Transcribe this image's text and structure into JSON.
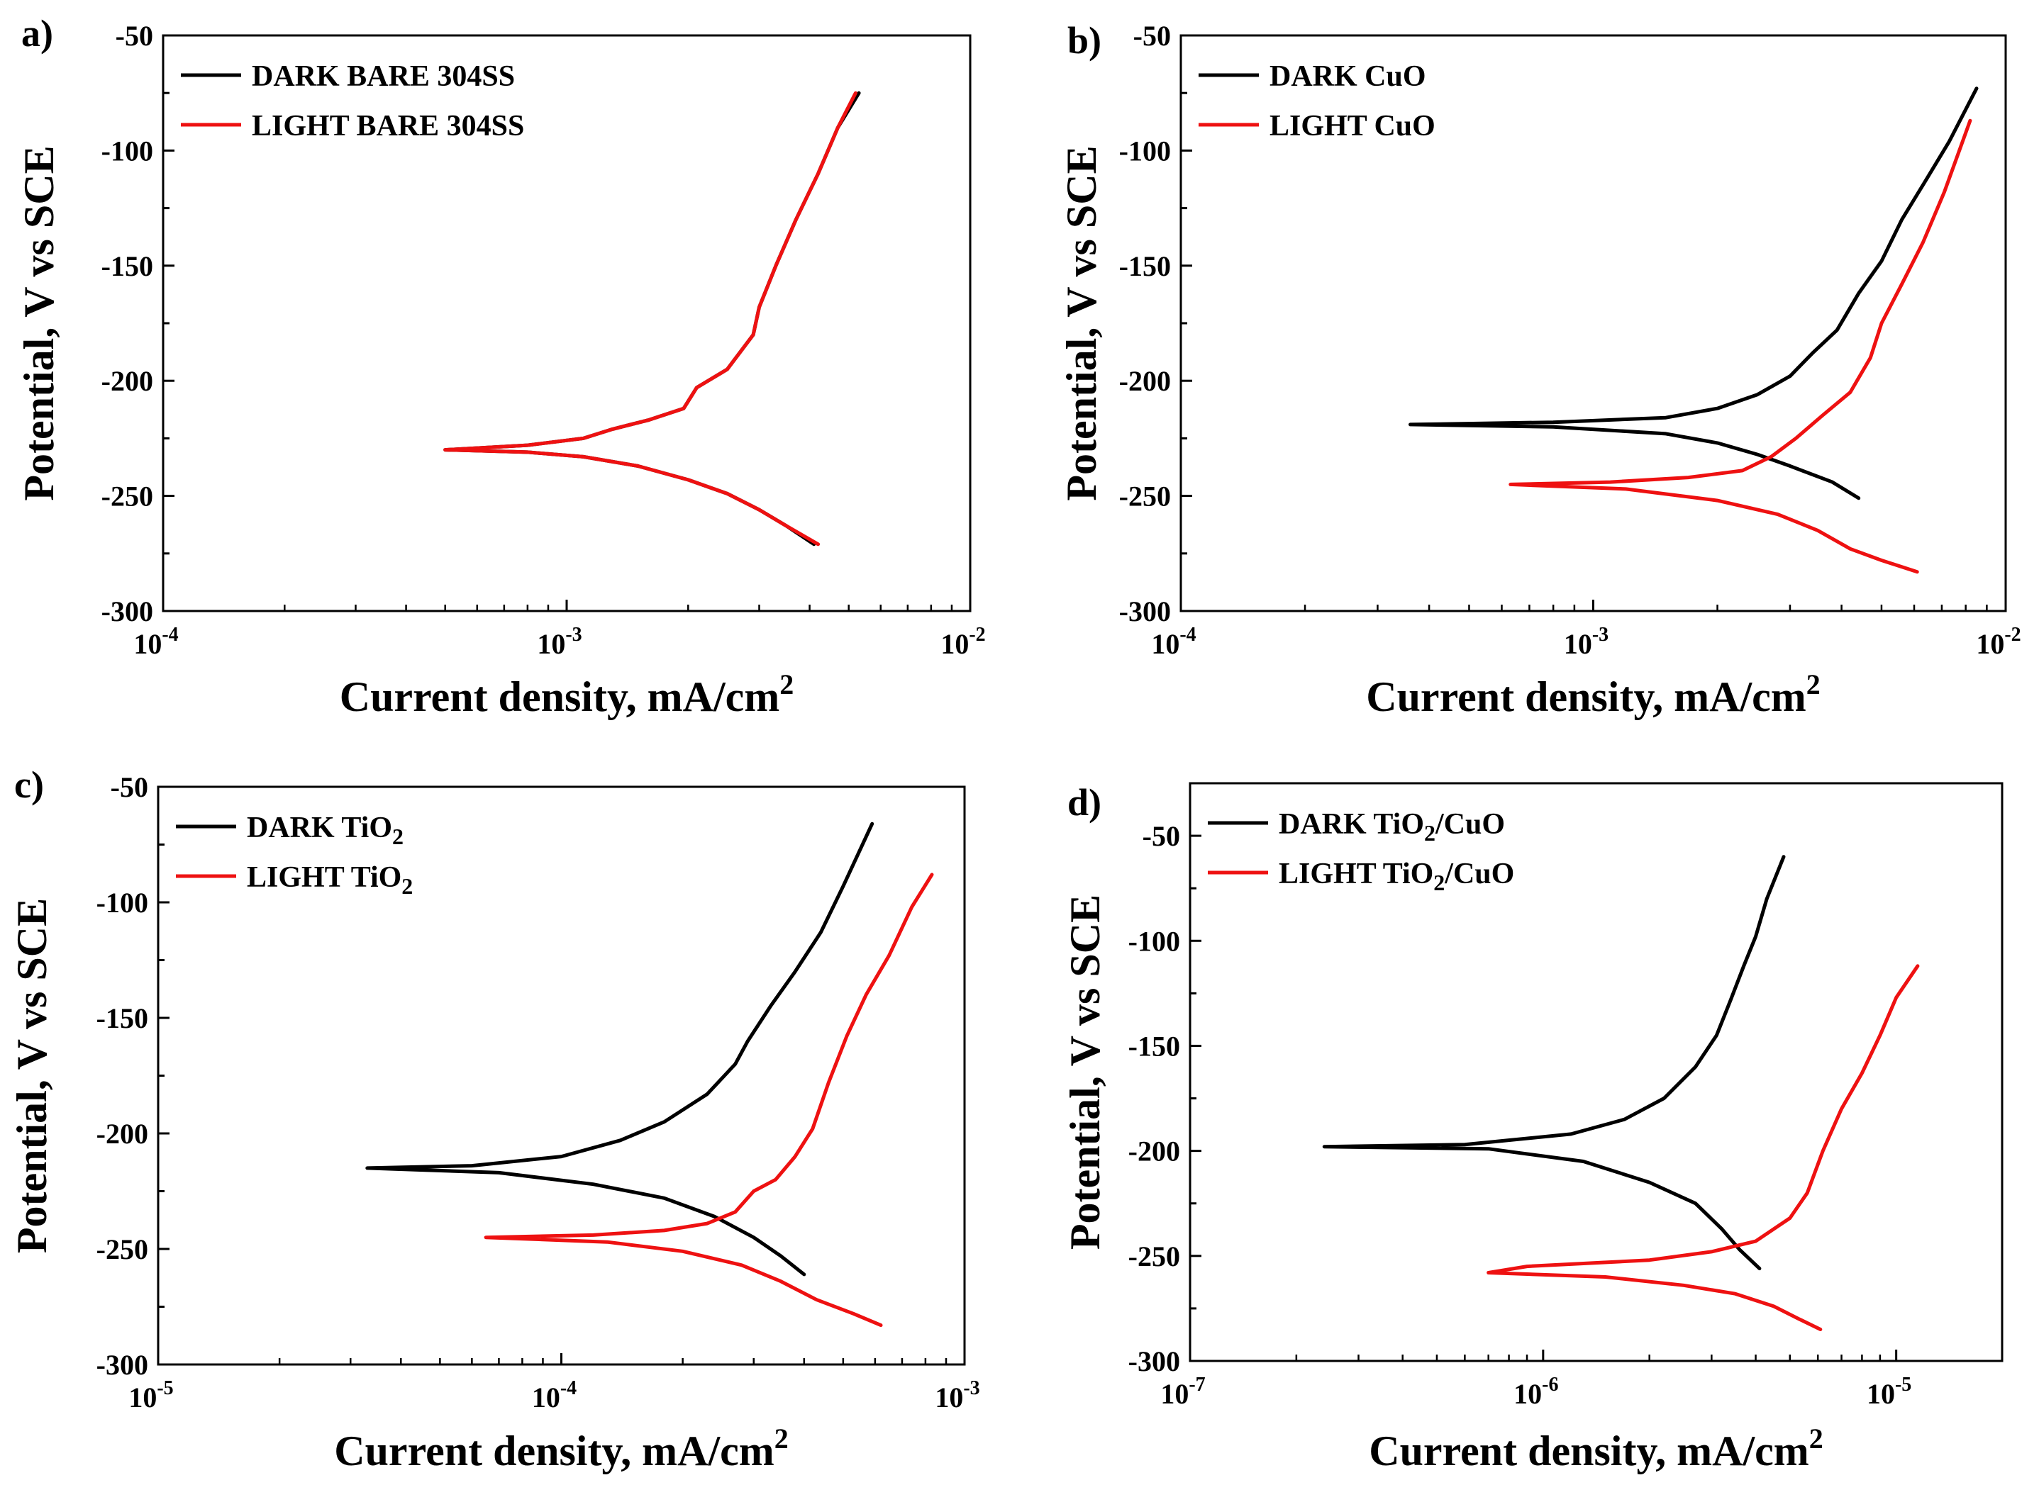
{
  "figure": {
    "panel_count": 4
  },
  "colors": {
    "dark": "#000000",
    "light": "#ee1111",
    "axis": "#000000"
  },
  "chart_data": [
    {
      "type": "line",
      "panel_label": "a)",
      "title": "",
      "xlabel": "Current density, mA/cm",
      "xlabel_sup": "2",
      "ylabel": "Potential, V vs SCE",
      "xscale": "log",
      "x_ticks": [
        {
          "base": "10",
          "exp": "-4"
        },
        {
          "base": "10",
          "exp": "-3"
        },
        {
          "base": "10",
          "exp": "-2"
        }
      ],
      "xlim_exp": [
        -4,
        -2
      ],
      "y_ticks": [
        "-50",
        "-100",
        "-150",
        "-200",
        "-250",
        "-300"
      ],
      "ylim": [
        -300,
        -50
      ],
      "legend_position": "top-left",
      "series": [
        {
          "name": "DARK BARE 304SS",
          "color": "#000000",
          "anodic": [
            [
              0.0005,
              -230
            ],
            [
              0.0008,
              -228
            ],
            [
              0.0011,
              -225
            ],
            [
              0.0013,
              -221
            ],
            [
              0.0016,
              -217
            ],
            [
              0.00195,
              -212
            ],
            [
              0.0021,
              -203
            ],
            [
              0.0025,
              -195
            ],
            [
              0.0029,
              -180
            ],
            [
              0.003,
              -168
            ],
            [
              0.0033,
              -150
            ],
            [
              0.0037,
              -130
            ],
            [
              0.0042,
              -110
            ],
            [
              0.0047,
              -90
            ],
            [
              0.0053,
              -75
            ]
          ],
          "cathodic": [
            [
              0.0005,
              -230
            ],
            [
              0.0008,
              -231
            ],
            [
              0.0011,
              -233
            ],
            [
              0.0015,
              -237
            ],
            [
              0.002,
              -243
            ],
            [
              0.0025,
              -249
            ],
            [
              0.003,
              -256
            ],
            [
              0.0035,
              -263
            ],
            [
              0.0041,
              -271
            ]
          ]
        },
        {
          "name": "LIGHT BARE 304SS",
          "color": "#ee1111",
          "anodic": [
            [
              0.0005,
              -230
            ],
            [
              0.0008,
              -228
            ],
            [
              0.0011,
              -225
            ],
            [
              0.0013,
              -221
            ],
            [
              0.0016,
              -217
            ],
            [
              0.00195,
              -212
            ],
            [
              0.0021,
              -203
            ],
            [
              0.0025,
              -195
            ],
            [
              0.0029,
              -180
            ],
            [
              0.003,
              -168
            ],
            [
              0.0033,
              -150
            ],
            [
              0.0037,
              -130
            ],
            [
              0.0042,
              -110
            ],
            [
              0.0047,
              -90
            ],
            [
              0.0052,
              -75
            ]
          ],
          "cathodic": [
            [
              0.0005,
              -230
            ],
            [
              0.0008,
              -231
            ],
            [
              0.0011,
              -233
            ],
            [
              0.0015,
              -237
            ],
            [
              0.002,
              -243
            ],
            [
              0.0025,
              -249
            ],
            [
              0.003,
              -256
            ],
            [
              0.0035,
              -263
            ],
            [
              0.0042,
              -271
            ]
          ]
        }
      ]
    },
    {
      "type": "line",
      "panel_label": "b)",
      "title": "",
      "xlabel": "Current density, mA/cm",
      "xlabel_sup": "2",
      "ylabel": "Potential, V vs SCE",
      "xscale": "log",
      "x_ticks": [
        {
          "base": "10",
          "exp": "-4"
        },
        {
          "base": "10",
          "exp": "-3"
        },
        {
          "base": "10",
          "exp": "-2"
        }
      ],
      "xlim_exp": [
        -4,
        -2
      ],
      "y_ticks": [
        "-50",
        "-100",
        "-150",
        "-200",
        "-250",
        "-300"
      ],
      "ylim": [
        -300,
        -50
      ],
      "legend_position": "top-left",
      "series": [
        {
          "name": "DARK CuO",
          "color": "#000000",
          "anodic": [
            [
              0.00036,
              -219
            ],
            [
              0.0008,
              -218
            ],
            [
              0.0015,
              -216
            ],
            [
              0.002,
              -212
            ],
            [
              0.0025,
              -206
            ],
            [
              0.003,
              -198
            ],
            [
              0.0034,
              -188
            ],
            [
              0.0039,
              -178
            ],
            [
              0.0044,
              -162
            ],
            [
              0.005,
              -148
            ],
            [
              0.0056,
              -130
            ],
            [
              0.0064,
              -113
            ],
            [
              0.0073,
              -96
            ],
            [
              0.0085,
              -73
            ]
          ],
          "cathodic": [
            [
              0.00036,
              -219
            ],
            [
              0.0008,
              -220
            ],
            [
              0.0015,
              -223
            ],
            [
              0.002,
              -227
            ],
            [
              0.0025,
              -232
            ],
            [
              0.003,
              -237
            ],
            [
              0.0038,
              -244
            ],
            [
              0.0044,
              -251
            ]
          ]
        },
        {
          "name": "LIGHT CuO",
          "color": "#ee1111",
          "anodic": [
            [
              0.00063,
              -245
            ],
            [
              0.0011,
              -244
            ],
            [
              0.0017,
              -242
            ],
            [
              0.0023,
              -239
            ],
            [
              0.0027,
              -233
            ],
            [
              0.0031,
              -225
            ],
            [
              0.0036,
              -215
            ],
            [
              0.0042,
              -205
            ],
            [
              0.0047,
              -190
            ],
            [
              0.005,
              -175
            ],
            [
              0.0056,
              -158
            ],
            [
              0.0063,
              -140
            ],
            [
              0.0071,
              -118
            ],
            [
              0.0082,
              -87
            ]
          ],
          "cathodic": [
            [
              0.00063,
              -245
            ],
            [
              0.0012,
              -247
            ],
            [
              0.002,
              -252
            ],
            [
              0.0028,
              -258
            ],
            [
              0.0035,
              -265
            ],
            [
              0.0042,
              -273
            ],
            [
              0.005,
              -278
            ],
            [
              0.0061,
              -283
            ]
          ]
        }
      ]
    },
    {
      "type": "line",
      "panel_label": "c)",
      "title": "",
      "xlabel": "Current density, mA/cm",
      "xlabel_sup": "2",
      "ylabel": "Potential, V vs SCE",
      "xscale": "log",
      "x_ticks": [
        {
          "base": "10",
          "exp": "-5"
        },
        {
          "base": "10",
          "exp": "-4"
        },
        {
          "base": "10",
          "exp": "-3"
        }
      ],
      "xlim_exp": [
        -5,
        -3
      ],
      "y_ticks": [
        "-50",
        "-100",
        "-150",
        "-200",
        "-250",
        "-300"
      ],
      "ylim": [
        -300,
        -50
      ],
      "legend_position": "top-left",
      "series": [
        {
          "name": "DARK TiO",
          "name_sub": "2",
          "color": "#000000",
          "anodic": [
            [
              3.3e-05,
              -215
            ],
            [
              6e-05,
              -214
            ],
            [
              0.0001,
              -210
            ],
            [
              0.00014,
              -203
            ],
            [
              0.00018,
              -195
            ],
            [
              0.00023,
              -183
            ],
            [
              0.00027,
              -170
            ],
            [
              0.00029,
              -160
            ],
            [
              0.00033,
              -145
            ],
            [
              0.00038,
              -130
            ],
            [
              0.00044,
              -113
            ],
            [
              0.0005,
              -93
            ],
            [
              0.00059,
              -66
            ]
          ],
          "cathodic": [
            [
              3.3e-05,
              -215
            ],
            [
              7e-05,
              -217
            ],
            [
              0.00012,
              -222
            ],
            [
              0.00018,
              -228
            ],
            [
              0.00024,
              -236
            ],
            [
              0.0003,
              -245
            ],
            [
              0.00035,
              -253
            ],
            [
              0.0004,
              -261
            ]
          ]
        },
        {
          "name": "LIGHT TiO",
          "name_sub": "2",
          "color": "#ee1111",
          "anodic": [
            [
              6.5e-05,
              -245
            ],
            [
              0.00012,
              -244
            ],
            [
              0.00018,
              -242
            ],
            [
              0.00023,
              -239
            ],
            [
              0.00027,
              -234
            ],
            [
              0.0003,
              -225
            ],
            [
              0.00034,
              -220
            ],
            [
              0.00038,
              -210
            ],
            [
              0.00042,
              -198
            ],
            [
              0.00046,
              -178
            ],
            [
              0.00051,
              -158
            ],
            [
              0.00057,
              -140
            ],
            [
              0.00065,
              -123
            ],
            [
              0.00074,
              -102
            ],
            [
              0.00083,
              -88
            ]
          ],
          "cathodic": [
            [
              6.5e-05,
              -245
            ],
            [
              0.00013,
              -247
            ],
            [
              0.0002,
              -251
            ],
            [
              0.00028,
              -257
            ],
            [
              0.00035,
              -264
            ],
            [
              0.00043,
              -272
            ],
            [
              0.00053,
              -278
            ],
            [
              0.00062,
              -283
            ]
          ]
        }
      ]
    },
    {
      "type": "line",
      "panel_label": "d)",
      "title": "",
      "xlabel": "Current density, mA/cm",
      "xlabel_sup": "2",
      "ylabel": "Potential, V vs SCE",
      "xscale": "log",
      "x_ticks": [
        {
          "base": "10",
          "exp": "-7"
        },
        {
          "base": "10",
          "exp": "-6"
        },
        {
          "base": "10",
          "exp": "-5"
        }
      ],
      "xlim_exp": [
        -7,
        -4.7
      ],
      "y_ticks": [
        "-50",
        "-100",
        "-150",
        "-200",
        "-250",
        "-300"
      ],
      "ylim": [
        -300,
        -25
      ],
      "legend_position": "top-left",
      "series": [
        {
          "name": "DARK TiO",
          "name_sub": "2",
          "name_suffix": "/CuO",
          "color": "#000000",
          "anodic": [
            [
              2.4e-07,
              -198
            ],
            [
              6e-07,
              -197
            ],
            [
              1.2e-06,
              -192
            ],
            [
              1.7e-06,
              -185
            ],
            [
              2.2e-06,
              -175
            ],
            [
              2.7e-06,
              -160
            ],
            [
              3.1e-06,
              -145
            ],
            [
              3.4e-06,
              -128
            ],
            [
              3.7e-06,
              -112
            ],
            [
              4e-06,
              -98
            ],
            [
              4.3e-06,
              -80
            ],
            [
              4.8e-06,
              -60
            ]
          ],
          "cathodic": [
            [
              2.4e-07,
              -198
            ],
            [
              7e-07,
              -199
            ],
            [
              1.3e-06,
              -205
            ],
            [
              2e-06,
              -215
            ],
            [
              2.7e-06,
              -225
            ],
            [
              3.2e-06,
              -237
            ],
            [
              3.6e-06,
              -247
            ],
            [
              4.1e-06,
              -256
            ]
          ]
        },
        {
          "name": "LIGHT TiO",
          "name_sub": "2",
          "name_suffix": "/CuO",
          "color": "#ee1111",
          "anodic": [
            [
              7e-07,
              -258
            ],
            [
              9e-07,
              -255
            ],
            [
              2e-06,
              -252
            ],
            [
              3e-06,
              -248
            ],
            [
              4e-06,
              -243
            ],
            [
              5e-06,
              -232
            ],
            [
              5.6e-06,
              -220
            ],
            [
              6.2e-06,
              -200
            ],
            [
              7e-06,
              -180
            ],
            [
              8e-06,
              -163
            ],
            [
              9e-06,
              -145
            ],
            [
              1e-05,
              -127
            ],
            [
              1.15e-05,
              -112
            ]
          ],
          "cathodic": [
            [
              7e-07,
              -258
            ],
            [
              1.5e-06,
              -260
            ],
            [
              2.5e-06,
              -264
            ],
            [
              3.5e-06,
              -268
            ],
            [
              4.5e-06,
              -274
            ],
            [
              5.3e-06,
              -280
            ],
            [
              6.1e-06,
              -285
            ]
          ]
        }
      ]
    }
  ]
}
